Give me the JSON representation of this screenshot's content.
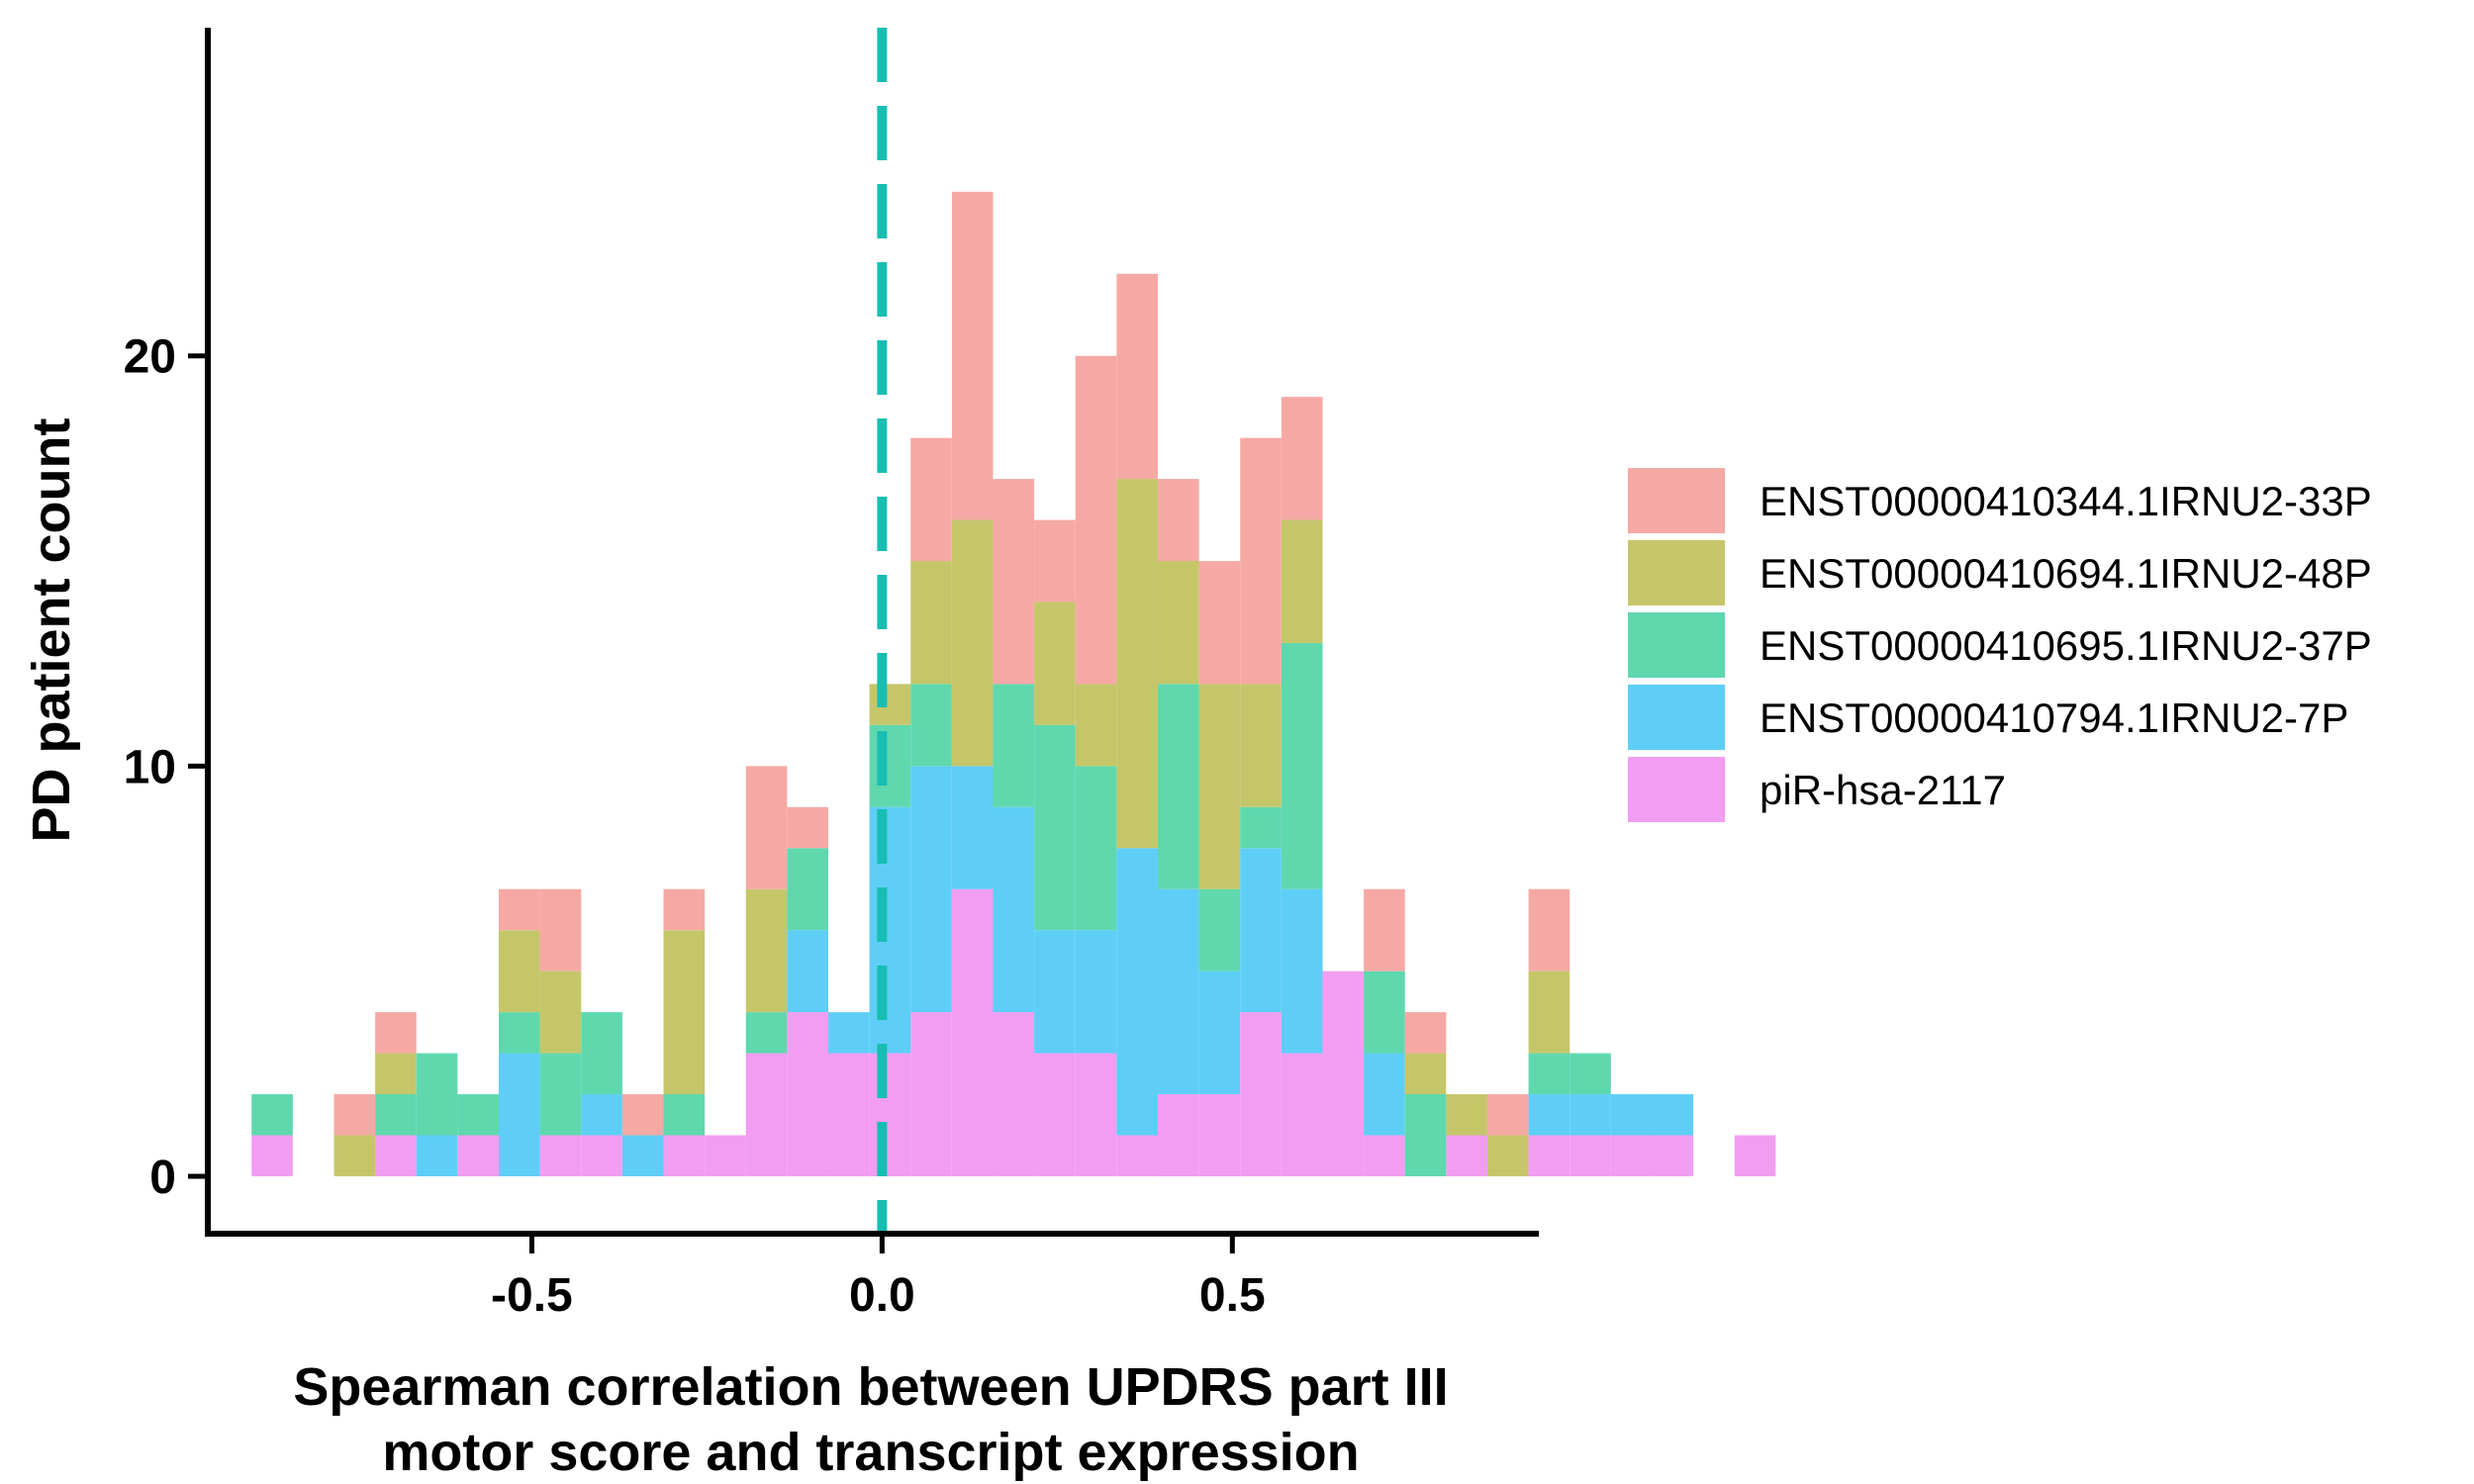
{
  "chart_data": {
    "type": "bar",
    "stacked": true,
    "xlabel": "Spearman correlation between UPDRS part III\nmotor score and transcript expression",
    "ylabel": "PD patient count",
    "xlim": [
      -0.9625,
      0.9375
    ],
    "ylim": [
      -1.4,
      28
    ],
    "xticks": [
      -0.5,
      0.0,
      0.5
    ],
    "xtick_labels": [
      "-0.5",
      "0.0",
      "0.5"
    ],
    "yticks": [
      0,
      10,
      20
    ],
    "ytick_labels": [
      "0",
      "10",
      "20"
    ],
    "bin_width": 0.0588,
    "bin_start": -0.9,
    "reference_line": {
      "x": 0.0,
      "style": "dashed",
      "color": "#17BEB1"
    },
    "grid": false,
    "legend_position": "right",
    "series": [
      {
        "name": "piR-hsa-2117",
        "color": "#F19DF2",
        "values": [
          1,
          0,
          0,
          1,
          0,
          1,
          0,
          1,
          1,
          0,
          1,
          1,
          3,
          4,
          3,
          3,
          4,
          7,
          4,
          3,
          3,
          1,
          2,
          2,
          4,
          3,
          5,
          1,
          0,
          1,
          0,
          1,
          1,
          1,
          1,
          0,
          1
        ]
      },
      {
        "name": "ENST00000410794.1IRNU2-7P",
        "color": "#5ECEF7",
        "values": [
          0,
          0,
          0,
          0,
          1,
          0,
          3,
          0,
          1,
          1,
          0,
          0,
          0,
          2,
          1,
          6,
          6,
          3,
          5,
          3,
          3,
          7,
          5,
          3,
          4,
          4,
          0,
          2,
          0,
          0,
          0,
          1,
          1,
          1,
          1,
          0,
          0
        ]
      },
      {
        "name": "ENST00000410695.1IRNU2-37P",
        "color": "#5FD8AE",
        "values": [
          1,
          0,
          0,
          1,
          2,
          1,
          1,
          2,
          2,
          0,
          1,
          0,
          1,
          2,
          0,
          2,
          2,
          0,
          3,
          5,
          4,
          0,
          5,
          2,
          1,
          6,
          0,
          2,
          2,
          0,
          0,
          1,
          1,
          0,
          0,
          0,
          0
        ]
      },
      {
        "name": "ENST00000410694.1IRNU2-48P",
        "color": "#C5C66A",
        "values": [
          0,
          0,
          1,
          1,
          0,
          0,
          2,
          2,
          0,
          0,
          4,
          0,
          3,
          0,
          0,
          1,
          3,
          6,
          0,
          3,
          2,
          9,
          3,
          5,
          3,
          3,
          0,
          0,
          1,
          1,
          1,
          2,
          0,
          0,
          0,
          0,
          0
        ]
      },
      {
        "name": "ENST00000410344.1IRNU2-33P",
        "color": "#F6A9A4",
        "values": [
          0,
          0,
          1,
          1,
          0,
          0,
          1,
          2,
          0,
          1,
          1,
          0,
          3,
          1,
          0,
          0,
          3,
          8,
          5,
          2,
          8,
          5,
          2,
          3,
          6,
          3,
          0,
          2,
          1,
          0,
          1,
          2,
          0,
          0,
          0,
          0,
          0
        ]
      }
    ]
  },
  "legend": {
    "items": [
      {
        "label": "ENST00000410344.1IRNU2-33P",
        "color": "#F6A9A4"
      },
      {
        "label": "ENST00000410694.1IRNU2-48P",
        "color": "#C5C66A"
      },
      {
        "label": "ENST00000410695.1IRNU2-37P",
        "color": "#5FD8AE"
      },
      {
        "label": "ENST00000410794.1IRNU2-7P",
        "color": "#5ECEF7"
      },
      {
        "label": "piR-hsa-2117",
        "color": "#F19DF2"
      }
    ]
  }
}
